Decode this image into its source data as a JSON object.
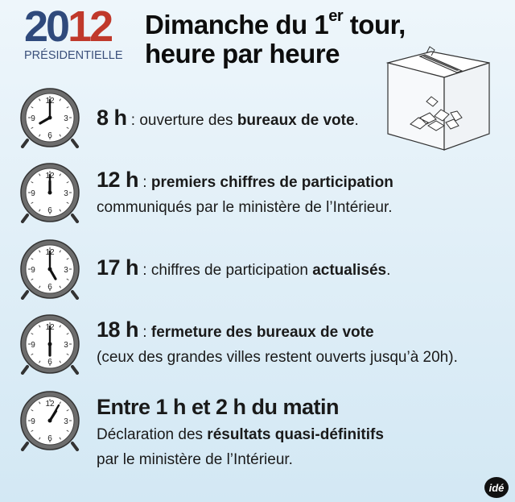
{
  "header": {
    "year_part1": "20",
    "year_part2": "12",
    "subtitle": "PRÉSIDENTIELLE",
    "title_line1_a": "Dimanche du 1",
    "title_line1_sup": "er",
    "title_line1_b": " tour,",
    "title_line2": "heure par heure"
  },
  "items": [
    {
      "hour": "8 h",
      "sep": " : ",
      "text1": "ouverture des ",
      "bold1": "bureaux de vote",
      "text2": "."
    },
    {
      "hour": "12 h",
      "sep": " : ",
      "bold1": "premiers chiffres de participation",
      "line2": "communiqués par le ministère de l’Intérieur."
    },
    {
      "hour": "17 h",
      "sep": " : ",
      "text1": "chiffres de participation ",
      "bold1": "actualisés",
      "text2": "."
    },
    {
      "hour": "18 h",
      "sep": " : ",
      "bold1": "fermeture des bureaux de vote",
      "line2": "(ceux des grandes villes restent ouverts jusqu’à 20h)."
    },
    {
      "heading": "Entre 1 h et 2 h du matin",
      "line2_a": "Déclaration des ",
      "line2_bold": "résultats quasi-définitifs",
      "line3": "par le ministère de l’Intérieur."
    }
  ],
  "clock_labels": {
    "twelve": "12",
    "three": "3",
    "six": "6",
    "nine": "9"
  },
  "clock_times": [
    {
      "hour": 8,
      "minute": 0
    },
    {
      "hour": 12,
      "minute": 0
    },
    {
      "hour": 17,
      "minute": 0
    },
    {
      "hour": 18,
      "minute": 0
    },
    {
      "hour": 1,
      "minute": 5
    }
  ],
  "footer": {
    "logo_text": "idé"
  },
  "icons": {
    "ballot_box": "ballot-box-icon"
  }
}
